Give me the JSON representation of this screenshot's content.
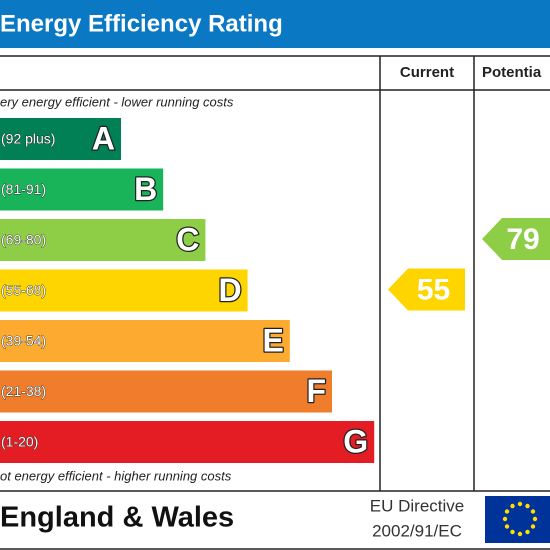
{
  "header": {
    "title": "Energy Efficiency Rating"
  },
  "columns": {
    "current": "Current",
    "potential": "Potentia"
  },
  "scale": {
    "top_note": "ery energy efficient - lower running costs",
    "bottom_note": "ot energy efficient - higher running costs"
  },
  "bands": [
    {
      "range": "(92 plus)",
      "letter": "A",
      "color": "#008054"
    },
    {
      "range": "(81-91)",
      "letter": "B",
      "color": "#19b459"
    },
    {
      "range": "(69-80)",
      "letter": "C",
      "color": "#8dce46"
    },
    {
      "range": "(55-68)",
      "letter": "D",
      "color": "#ffd500"
    },
    {
      "range": "(39-54)",
      "letter": "E",
      "color": "#fcaa30"
    },
    {
      "range": "(21-38)",
      "letter": "F",
      "color": "#ef7d2b"
    },
    {
      "range": "(1-20)",
      "letter": "G",
      "color": "#e31d23"
    }
  ],
  "ratings": {
    "current": {
      "value": 55
    },
    "potential": {
      "value": 79
    }
  },
  "footer": {
    "region": "England & Wales",
    "directive": [
      "EU Directive",
      "2002/91/EC"
    ]
  }
}
